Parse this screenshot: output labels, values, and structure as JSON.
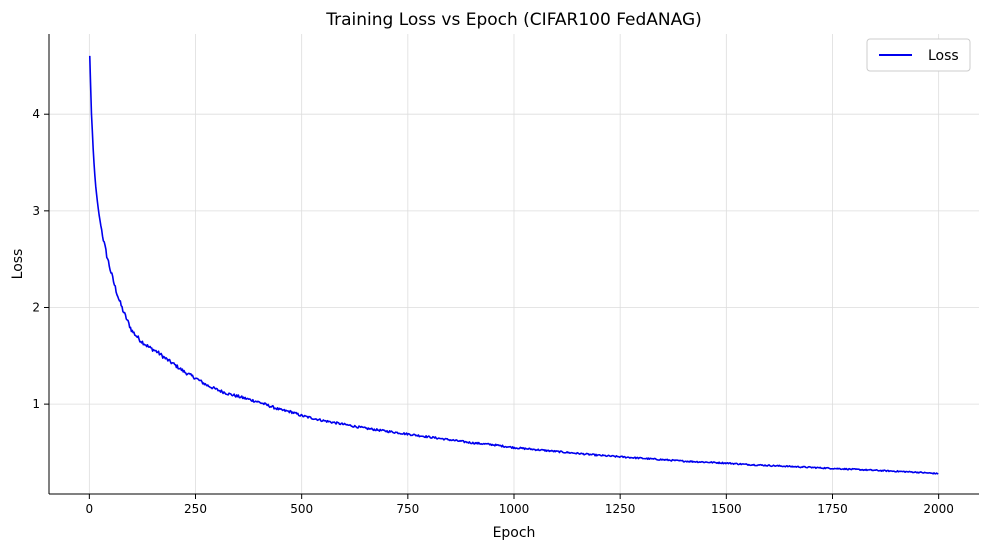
{
  "chart_data": {
    "type": "line",
    "title": "Training Loss vs Epoch (CIFAR100 FedANAG)",
    "xlabel": "Epoch",
    "ylabel": "Loss",
    "xlim": [
      -95,
      2095
    ],
    "ylim": [
      0.07,
      4.83
    ],
    "xticks": [
      0,
      250,
      500,
      750,
      1000,
      1250,
      1500,
      1750,
      2000
    ],
    "yticks": [
      1,
      2,
      3,
      4
    ],
    "grid": true,
    "legend_position": "top-right",
    "series": [
      {
        "name": "Loss",
        "color": "#0000ee",
        "x": [
          1,
          5,
          10,
          15,
          20,
          25,
          30,
          35,
          40,
          45,
          50,
          55,
          60,
          70,
          80,
          90,
          100,
          120,
          140,
          160,
          180,
          200,
          225,
          250,
          275,
          300,
          325,
          350,
          375,
          400,
          425,
          450,
          475,
          500,
          550,
          600,
          650,
          700,
          750,
          800,
          850,
          900,
          950,
          1000,
          1050,
          1100,
          1150,
          1200,
          1250,
          1300,
          1350,
          1400,
          1450,
          1500,
          1550,
          1600,
          1650,
          1700,
          1750,
          1800,
          1850,
          1900,
          1950,
          2000
        ],
        "y": [
          4.6,
          4.0,
          3.55,
          3.25,
          3.05,
          2.9,
          2.78,
          2.66,
          2.56,
          2.47,
          2.38,
          2.3,
          2.22,
          2.08,
          1.96,
          1.86,
          1.76,
          1.66,
          1.59,
          1.54,
          1.47,
          1.41,
          1.33,
          1.27,
          1.2,
          1.15,
          1.11,
          1.08,
          1.05,
          1.02,
          0.98,
          0.94,
          0.92,
          0.88,
          0.83,
          0.79,
          0.75,
          0.72,
          0.69,
          0.66,
          0.63,
          0.6,
          0.58,
          0.55,
          0.53,
          0.51,
          0.49,
          0.47,
          0.455,
          0.44,
          0.425,
          0.41,
          0.4,
          0.39,
          0.375,
          0.365,
          0.355,
          0.345,
          0.335,
          0.325,
          0.315,
          0.305,
          0.295,
          0.28
        ]
      }
    ]
  }
}
